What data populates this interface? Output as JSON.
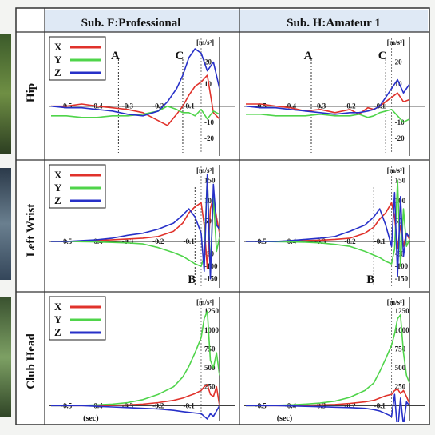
{
  "colors": {
    "x_series": "#e0322b",
    "y_series": "#4fd44a",
    "z_series": "#2730c8",
    "header_bg": "#dfe9f5",
    "panel_bg": "#ffffff",
    "grid_border": "#333333"
  },
  "headers": {
    "col1": "Sub. F:Professional",
    "col2": "Sub. H:Amateur 1"
  },
  "rows": [
    "Hip",
    "Left Wrist",
    "Club Head"
  ],
  "legend": [
    "X",
    "Y",
    "Z"
  ],
  "x_unit": "(sec)",
  "y_unit": "[m/s²]",
  "markers": {
    "a": "A",
    "b": "B",
    "c": "C"
  },
  "x_ticks": [
    "-0.5",
    "-0.4",
    "-0.3",
    "-0.2",
    "-0.1"
  ],
  "chart_data": [
    {
      "type": "line",
      "id": "hip-pro",
      "row": "Hip",
      "column": "Sub. F:Professional",
      "xlim": [
        -0.55,
        0.0
      ],
      "ylim": [
        -30,
        30
      ],
      "y_ticks": [
        "20",
        "10",
        "-10",
        "-20"
      ],
      "markers": [
        {
          "label": "A",
          "x": -0.33
        },
        {
          "label": "C",
          "x": -0.12
        }
      ],
      "x": [
        -0.55,
        -0.5,
        -0.45,
        -0.4,
        -0.35,
        -0.3,
        -0.25,
        -0.2,
        -0.17,
        -0.14,
        -0.12,
        -0.1,
        -0.08,
        -0.06,
        -0.04,
        -0.02,
        0.0
      ],
      "series": [
        {
          "name": "X",
          "values": [
            0,
            0,
            1,
            0,
            -1,
            -2,
            -4,
            -9,
            -12,
            -5,
            0,
            5,
            9,
            11,
            14,
            -4,
            -8
          ]
        },
        {
          "name": "Y",
          "values": [
            -6,
            -6,
            -7,
            -7,
            -6,
            -6,
            -5,
            -3,
            0,
            -2,
            -4,
            -4,
            -6,
            -2,
            -8,
            -3,
            -5
          ]
        },
        {
          "name": "Z",
          "values": [
            0,
            -1,
            -1,
            -2,
            -3,
            -5,
            -6,
            -3,
            2,
            8,
            14,
            22,
            26,
            24,
            16,
            20,
            8
          ]
        }
      ]
    },
    {
      "type": "line",
      "id": "hip-am",
      "row": "Hip",
      "column": "Sub. H:Amateur 1",
      "xlim": [
        -0.55,
        0.0
      ],
      "ylim": [
        -30,
        30
      ],
      "y_ticks": [
        "20",
        "10",
        "-10",
        "-20"
      ],
      "markers": [
        {
          "label": "A",
          "x": -0.33
        },
        {
          "label": "C",
          "x": -0.08
        }
      ],
      "x": [
        -0.55,
        -0.5,
        -0.45,
        -0.4,
        -0.35,
        -0.3,
        -0.25,
        -0.2,
        -0.17,
        -0.14,
        -0.12,
        -0.1,
        -0.08,
        -0.06,
        -0.04,
        -0.02,
        0.0
      ],
      "series": [
        {
          "name": "X",
          "values": [
            1,
            1,
            0,
            -1,
            -3,
            -2,
            -4,
            -2,
            -5,
            -1,
            -2,
            0,
            2,
            4,
            6,
            2,
            3
          ]
        },
        {
          "name": "Y",
          "values": [
            -5,
            -5,
            -6,
            -6,
            -6,
            -5,
            -6,
            -6,
            -5,
            -7,
            -6,
            -4,
            -3,
            -2,
            -6,
            -10,
            -8
          ]
        },
        {
          "name": "Z",
          "values": [
            0,
            -1,
            -1,
            -2,
            -3,
            -4,
            -5,
            -4,
            -4,
            -3,
            -2,
            0,
            4,
            8,
            12,
            6,
            10
          ]
        }
      ]
    },
    {
      "type": "line",
      "id": "wrist-pro",
      "row": "Left Wrist",
      "column": "Sub. F:Professional",
      "xlim": [
        -0.55,
        0.0
      ],
      "ylim": [
        -180,
        180
      ],
      "y_ticks": [
        "150",
        "100",
        "50",
        "-50",
        "-100",
        "-150"
      ],
      "markers": [
        {
          "label": "B",
          "x": -0.08
        }
      ],
      "x": [
        -0.55,
        -0.5,
        -0.45,
        -0.4,
        -0.35,
        -0.3,
        -0.25,
        -0.2,
        -0.15,
        -0.12,
        -0.1,
        -0.08,
        -0.06,
        -0.05,
        -0.04,
        -0.03,
        -0.02,
        -0.01,
        0.0
      ],
      "series": [
        {
          "name": "X",
          "values": [
            0,
            0,
            1,
            2,
            4,
            6,
            8,
            12,
            25,
            45,
            70,
            85,
            95,
            40,
            -110,
            80,
            110,
            60,
            20
          ]
        },
        {
          "name": "Y",
          "values": [
            0,
            0,
            -1,
            -2,
            -4,
            -6,
            -10,
            -25,
            -45,
            -60,
            -75,
            -90,
            -100,
            -60,
            160,
            -120,
            110,
            -40,
            10
          ]
        },
        {
          "name": "Z",
          "values": [
            0,
            0,
            2,
            4,
            8,
            15,
            20,
            30,
            45,
            65,
            80,
            60,
            20,
            -120,
            165,
            -150,
            140,
            40,
            30
          ]
        }
      ]
    },
    {
      "type": "line",
      "id": "wrist-am",
      "row": "Left Wrist",
      "column": "Sub. H:Amateur 1",
      "xlim": [
        -0.55,
        0.0
      ],
      "ylim": [
        -180,
        180
      ],
      "y_ticks": [
        "150",
        "100",
        "50",
        "-50",
        "-100",
        "-150"
      ],
      "markers": [
        {
          "label": "B",
          "x": -0.12
        }
      ],
      "x": [
        -0.55,
        -0.5,
        -0.45,
        -0.4,
        -0.35,
        -0.3,
        -0.25,
        -0.2,
        -0.15,
        -0.12,
        -0.1,
        -0.08,
        -0.06,
        -0.05,
        -0.04,
        -0.03,
        -0.02,
        -0.01,
        0.0
      ],
      "series": [
        {
          "name": "X",
          "values": [
            0,
            0,
            0,
            1,
            2,
            3,
            5,
            8,
            20,
            35,
            55,
            70,
            95,
            60,
            -30,
            40,
            -20,
            20,
            5
          ]
        },
        {
          "name": "Y",
          "values": [
            0,
            0,
            -1,
            -2,
            -3,
            -6,
            -12,
            -20,
            -40,
            -55,
            -65,
            -80,
            -90,
            -30,
            150,
            -100,
            80,
            -20,
            5
          ]
        },
        {
          "name": "Z",
          "values": [
            0,
            0,
            0,
            2,
            5,
            8,
            12,
            25,
            40,
            60,
            80,
            40,
            -20,
            120,
            -140,
            110,
            -60,
            20,
            10
          ]
        }
      ]
    },
    {
      "type": "line",
      "id": "club-pro",
      "row": "Club Head",
      "column": "Sub. F:Professional",
      "xlim": [
        -0.55,
        0.0
      ],
      "ylim": [
        -100,
        1400
      ],
      "y_ticks": [
        "1250",
        "1000",
        "750",
        "500",
        "250",
        "-250"
      ],
      "x": [
        -0.55,
        -0.5,
        -0.45,
        -0.4,
        -0.35,
        -0.3,
        -0.25,
        -0.2,
        -0.15,
        -0.12,
        -0.1,
        -0.08,
        -0.06,
        -0.05,
        -0.04,
        -0.03,
        -0.02,
        -0.01,
        0.0
      ],
      "series": [
        {
          "name": "X",
          "values": [
            0,
            0,
            0,
            0,
            5,
            10,
            20,
            40,
            70,
            100,
            130,
            160,
            200,
            250,
            280,
            150,
            120,
            250,
            0
          ]
        },
        {
          "name": "Y",
          "values": [
            0,
            0,
            5,
            10,
            20,
            40,
            80,
            150,
            250,
            380,
            520,
            700,
            900,
            1150,
            1250,
            600,
            500,
            700,
            400
          ]
        },
        {
          "name": "Z",
          "values": [
            0,
            0,
            0,
            -5,
            -10,
            -15,
            -20,
            -25,
            -35,
            -45,
            -50,
            -55,
            -60,
            -80,
            -100,
            -60,
            -80,
            -40,
            0
          ]
        }
      ]
    },
    {
      "type": "line",
      "id": "club-am",
      "row": "Club Head",
      "column": "Sub. H:Amateur 1",
      "xlim": [
        -0.55,
        0.0
      ],
      "ylim": [
        -100,
        1400
      ],
      "y_ticks": [
        "1250",
        "1000",
        "750",
        "500",
        "250",
        "-250"
      ],
      "x": [
        -0.55,
        -0.5,
        -0.45,
        -0.4,
        -0.35,
        -0.3,
        -0.25,
        -0.2,
        -0.15,
        -0.12,
        -0.1,
        -0.08,
        -0.06,
        -0.05,
        -0.04,
        -0.03,
        -0.02,
        -0.01,
        0.0
      ],
      "series": [
        {
          "name": "X",
          "values": [
            0,
            0,
            0,
            0,
            5,
            10,
            15,
            30,
            50,
            70,
            100,
            130,
            150,
            200,
            220,
            160,
            200,
            120,
            30
          ]
        },
        {
          "name": "Y",
          "values": [
            0,
            0,
            5,
            10,
            20,
            35,
            60,
            110,
            200,
            300,
            450,
            620,
            800,
            950,
            1150,
            1200,
            700,
            400,
            300
          ]
        },
        {
          "name": "Z",
          "values": [
            0,
            0,
            0,
            -2,
            -5,
            -8,
            -12,
            -15,
            -20,
            -30,
            -40,
            -60,
            -80,
            150,
            -200,
            100,
            -150,
            50,
            0
          ]
        }
      ]
    }
  ]
}
